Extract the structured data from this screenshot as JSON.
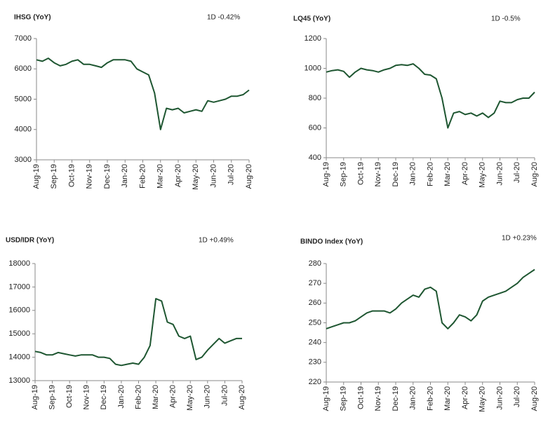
{
  "chart_data": [
    {
      "type": "line",
      "title": "IHSG (YoY)",
      "annotation": {
        "text": "1D -0.42%",
        "color": "#e6007e"
      },
      "categories": [
        "Aug-19",
        null,
        null,
        "Sep-19",
        null,
        null,
        "Oct-19",
        null,
        null,
        "Nov-19",
        null,
        null,
        "Dec-19",
        null,
        null,
        "Jan-20",
        null,
        null,
        "Feb-20",
        null,
        null,
        "Mar-20",
        null,
        null,
        "Apr-20",
        null,
        null,
        "May-20",
        null,
        null,
        "Jun-20",
        null,
        null,
        "Jul-20",
        null,
        null,
        "Aug-20"
      ],
      "values": [
        6300,
        6250,
        6350,
        6200,
        6100,
        6150,
        6250,
        6300,
        6150,
        6150,
        6100,
        6050,
        6200,
        6300,
        6300,
        6300,
        6250,
        6000,
        5900,
        5800,
        5200,
        4000,
        4700,
        4650,
        4700,
        4550,
        4600,
        4650,
        4600,
        4950,
        4900,
        4950,
        5000,
        5100,
        5100,
        5150,
        5300
      ],
      "color": "#1e5631",
      "ylim": [
        3000,
        7000
      ],
      "yticks": [
        3000,
        4000,
        5000,
        6000,
        7000
      ]
    },
    {
      "type": "line",
      "title": "LQ45 (YoY)",
      "annotation": {
        "text": "1D -0.5%",
        "color": "#e6007e"
      },
      "categories": [
        "Aug-19",
        null,
        null,
        "Sep-19",
        null,
        null,
        "Oct-19",
        null,
        null,
        "Nov-19",
        null,
        null,
        "Dec-19",
        null,
        null,
        "Jan-20",
        null,
        null,
        "Feb-20",
        null,
        null,
        "Mar-20",
        null,
        null,
        "Apr-20",
        null,
        null,
        "May-20",
        null,
        null,
        "Jun-20",
        null,
        null,
        "Jul-20",
        null,
        null,
        "Aug-20"
      ],
      "values": [
        975,
        985,
        990,
        980,
        940,
        975,
        1000,
        990,
        985,
        975,
        990,
        1000,
        1020,
        1025,
        1020,
        1030,
        1000,
        960,
        955,
        930,
        800,
        600,
        700,
        710,
        690,
        700,
        680,
        700,
        670,
        700,
        780,
        770,
        770,
        790,
        800,
        800,
        840
      ],
      "color": "#1e5631",
      "ylim": [
        400,
        1200
      ],
      "yticks": [
        400,
        600,
        800,
        1000,
        1200
      ]
    },
    {
      "type": "line",
      "title": "USD/IDR  (YoY)",
      "annotation": {
        "text": "1D +0.49%",
        "color": "#2e8b2e"
      },
      "categories": [
        "Aug-19",
        null,
        null,
        "Sep-19",
        null,
        null,
        "Oct-19",
        null,
        null,
        "Nov-19",
        null,
        null,
        "Dec-19",
        null,
        null,
        "Jan-20",
        null,
        null,
        "Feb-20",
        null,
        null,
        "Mar-20",
        null,
        null,
        "Apr-20",
        null,
        null,
        "May-20",
        null,
        null,
        "Jun-20",
        null,
        null,
        "Jul-20",
        null,
        null,
        "Aug-20"
      ],
      "values": [
        14250,
        14200,
        14100,
        14100,
        14200,
        14150,
        14100,
        14050,
        14100,
        14100,
        14100,
        14000,
        14000,
        13950,
        13700,
        13650,
        13700,
        13750,
        13700,
        14000,
        14500,
        16500,
        16400,
        15500,
        15400,
        14900,
        14800,
        14900,
        13900,
        14000,
        14300,
        14550,
        14800,
        14600,
        14700,
        14800,
        14800
      ],
      "color": "#1e5631",
      "ylim": [
        13000,
        18000
      ],
      "yticks": [
        13000,
        14000,
        15000,
        16000,
        17000,
        18000
      ]
    },
    {
      "type": "line",
      "title": "BINDO Index (YoY)",
      "annotation": {
        "text": "1D +0.23%",
        "color": "#2e8b2e"
      },
      "categories": [
        "Aug-19",
        null,
        null,
        "Sep-19",
        null,
        null,
        "Oct-19",
        null,
        null,
        "Nov-19",
        null,
        null,
        "Dec-19",
        null,
        null,
        "Jan-20",
        null,
        null,
        "Feb-20",
        null,
        null,
        "Mar-20",
        null,
        null,
        "Apr-20",
        null,
        null,
        "May-20",
        null,
        null,
        "Jun-20",
        null,
        null,
        "Jul-20",
        null,
        null,
        "Aug-20"
      ],
      "values": [
        247,
        248,
        249,
        250,
        250,
        251,
        253,
        255,
        256,
        256,
        256,
        255,
        257,
        260,
        262,
        264,
        263,
        267,
        268,
        266,
        250,
        247,
        250,
        254,
        253,
        251,
        254,
        261,
        263,
        264,
        265,
        266,
        268,
        270,
        273,
        275,
        277
      ],
      "color": "#1e5631",
      "ylim": [
        220,
        280
      ],
      "yticks": [
        220,
        230,
        240,
        250,
        260,
        270,
        280
      ]
    }
  ]
}
